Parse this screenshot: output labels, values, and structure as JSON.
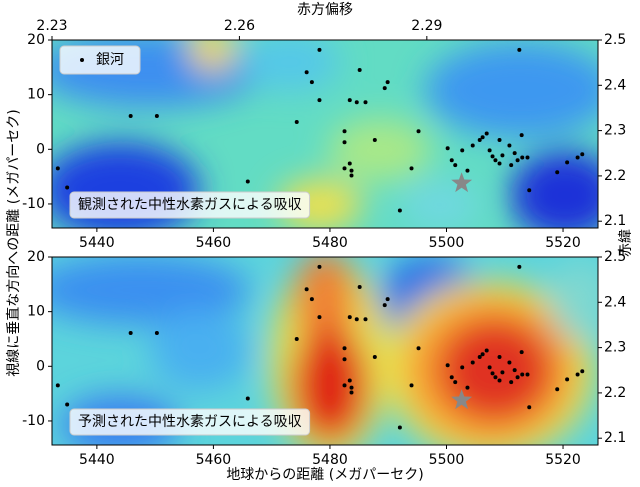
{
  "chart_data": [
    {
      "type": "scatter",
      "annotation": "観測された中性水素ガスによる吸収",
      "ylabel": "視線に垂直な方向への距離 (メガパーセク)",
      "y2label": "赤緯",
      "x2label": "赤方偏移",
      "legend": "upper left",
      "series": [
        {
          "name": "銀河",
          "color": "#000000",
          "x": [
            5433.3,
            5434.9,
            5445.8,
            5450.3,
            5465.9,
            5474.3,
            5476.0,
            5476.9,
            5478.2,
            5478.2,
            5483.4,
            5484.6,
            5486.1,
            5485.1,
            5482.5,
            5483.4,
            5482.5,
            5483.7,
            5483.7,
            5482.5,
            5487.7,
            5489.9,
            5489.4,
            5492.0,
            5494.0,
            5495.2,
            5500.2,
            5500.9,
            5501.5,
            5502.7,
            5503.6,
            5504.5,
            5505.7,
            5506.2,
            5506.9,
            5507.4,
            5507.9,
            5508.4,
            5509.1,
            5509.1,
            5509.6,
            5510.8,
            5511.1,
            5511.7,
            5512.5,
            5512.9,
            5513.0,
            5513.9,
            5512.2,
            5514.2,
            5519.0,
            5520.7,
            5522.5,
            5523.3
          ],
          "y": [
            -3.5,
            -7.0,
            6.1,
            6.1,
            -5.9,
            5.0,
            14.1,
            12.3,
            18.2,
            9.0,
            9.0,
            8.6,
            8.6,
            14.5,
            3.3,
            -2.6,
            -3.5,
            -3.9,
            -4.8,
            1.3,
            1.7,
            12.3,
            11.2,
            -11.2,
            -3.5,
            3.3,
            0.2,
            -2.0,
            -2.9,
            -0.2,
            -3.9,
            0.7,
            1.7,
            2.2,
            2.9,
            -0.2,
            -1.3,
            -2.0,
            1.7,
            -2.6,
            -1.1,
            0.7,
            -2.9,
            -0.7,
            18.2,
            2.6,
            -1.5,
            -1.5,
            -2.0,
            -7.5,
            -4.2,
            -2.4,
            -1.5,
            -0.9
          ]
        }
      ],
      "marker": {
        "x": 5502.6,
        "y": -6.2,
        "color": "#888888"
      },
      "xlim": [
        5432.3,
        5526
      ],
      "xticks": [
        5440,
        5460,
        5480,
        5500,
        5520
      ],
      "ylim": [
        -14.4,
        20
      ],
      "yticks": [
        -10,
        0,
        10,
        20
      ],
      "y2lim": [
        2.085,
        2.5
      ],
      "y2ticks": [
        2.1,
        2.2,
        2.3,
        2.4,
        2.5
      ],
      "x2lim": [
        2.23,
        2.3174
      ],
      "x2ticks": [
        2.23,
        2.26,
        2.29
      ]
    },
    {
      "type": "scatter",
      "annotation": "予測された中性水素ガスによる吸収",
      "xlabel": "地球からの距離 (メガパーセク)",
      "series": [
        {
          "name": "銀河",
          "color": "#000000",
          "x": [
            5433.3,
            5434.9,
            5445.8,
            5450.3,
            5465.9,
            5474.3,
            5476.0,
            5476.9,
            5478.2,
            5478.2,
            5483.4,
            5484.6,
            5486.1,
            5485.1,
            5482.5,
            5483.4,
            5482.5,
            5483.7,
            5483.7,
            5482.5,
            5487.7,
            5489.9,
            5489.4,
            5492.0,
            5494.0,
            5495.2,
            5500.2,
            5500.9,
            5501.5,
            5502.7,
            5503.6,
            5504.5,
            5505.7,
            5506.2,
            5506.9,
            5507.4,
            5507.9,
            5508.4,
            5509.1,
            5509.1,
            5509.6,
            5510.8,
            5511.1,
            5511.7,
            5512.5,
            5512.9,
            5513.0,
            5513.9,
            5512.2,
            5514.2,
            5519.0,
            5520.7,
            5522.5,
            5523.3
          ],
          "y": [
            -3.5,
            -7.0,
            6.1,
            6.1,
            -5.9,
            5.0,
            14.1,
            12.3,
            18.2,
            9.0,
            9.0,
            8.6,
            8.6,
            14.5,
            3.3,
            -2.6,
            -3.5,
            -3.9,
            -4.8,
            1.3,
            1.7,
            12.3,
            11.2,
            -11.2,
            -3.5,
            3.3,
            0.2,
            -2.0,
            -2.9,
            -0.2,
            -3.9,
            0.7,
            1.7,
            2.2,
            2.9,
            -0.2,
            -1.3,
            -2.0,
            1.7,
            -2.6,
            -1.1,
            0.7,
            -2.9,
            -0.7,
            18.2,
            2.6,
            -1.5,
            -1.5,
            -2.0,
            -7.5,
            -4.2,
            -2.4,
            -1.5,
            -0.9
          ]
        }
      ],
      "marker": {
        "x": 5502.6,
        "y": -6.2,
        "color": "#888888"
      },
      "xlim": [
        5432.3,
        5526
      ],
      "xticks": [
        5440,
        5460,
        5480,
        5500,
        5520
      ],
      "ylim": [
        -14.4,
        20
      ],
      "yticks": [
        -10,
        0,
        10,
        20
      ],
      "y2lim": [
        2.085,
        2.5
      ],
      "y2ticks": [
        2.1,
        2.2,
        2.3,
        2.4,
        2.5
      ]
    }
  ]
}
